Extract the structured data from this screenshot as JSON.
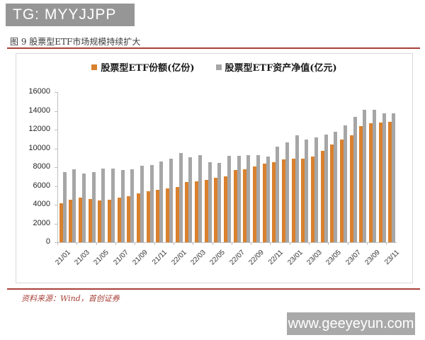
{
  "page": {
    "tg_badge": "TG: MYYJJPP",
    "site_watermark": "www.geeyeyun.com"
  },
  "figure": {
    "title": "图 9 股票型ETF市场规模持续扩大",
    "source": "资料来源：Wind，首创证券"
  },
  "colors": {
    "shares_bar": "#d9812e",
    "nav_bar": "#a6a6a6",
    "accent_red": "#a84038",
    "header_badge_gray": "#969696",
    "footer_badge_gray": "#a9a9a9",
    "axis_line": "#bfbfbf"
  },
  "chart_data": {
    "type": "bar",
    "title": "图 9 股票型ETF市场规模持续扩大",
    "legend_position": "top",
    "grid": false,
    "ylim": [
      0,
      16000
    ],
    "ytick_step": 2000,
    "yticks": [
      0,
      2000,
      4000,
      6000,
      8000,
      10000,
      12000,
      14000,
      16000
    ],
    "xtick_label_rotation": -45,
    "xtick_shown_every": 2,
    "categories": [
      "21/01",
      "21/02",
      "21/03",
      "21/04",
      "21/05",
      "21/06",
      "21/07",
      "21/08",
      "21/09",
      "21/10",
      "21/11",
      "21/12",
      "22/01",
      "22/02",
      "22/03",
      "22/04",
      "22/05",
      "22/06",
      "22/07",
      "22/08",
      "22/09",
      "22/10",
      "22/11",
      "22/12",
      "23/01",
      "23/02",
      "23/03",
      "23/04",
      "23/05",
      "23/06",
      "23/07",
      "23/08",
      "23/09",
      "23/10",
      "23/11"
    ],
    "shown_xtick_labels": [
      "21/01",
      "21/03",
      "21/05",
      "21/07",
      "21/09",
      "21/11",
      "22/01",
      "22/03",
      "22/05",
      "22/07",
      "22/09",
      "22/11",
      "23/01",
      "23/03",
      "23/05",
      "23/07",
      "23/09",
      "23/11"
    ],
    "series": [
      {
        "name": "股票型ETF份额(亿份)",
        "color": "#d9812e",
        "values": [
          4150,
          4550,
          4750,
          4600,
          4450,
          4500,
          4750,
          4900,
          5200,
          5450,
          5550,
          5720,
          5920,
          6400,
          6480,
          6650,
          6900,
          7000,
          7670,
          7750,
          8050,
          8380,
          8560,
          8840,
          8890,
          8940,
          9150,
          9700,
          10420,
          10920,
          11380,
          12400,
          12700,
          12750,
          12830
        ]
      },
      {
        "name": "股票型ETF资产净值(亿元)",
        "color": "#a6a6a6",
        "values": [
          7450,
          7800,
          7350,
          7450,
          7870,
          7830,
          7700,
          7800,
          8180,
          8260,
          8590,
          8940,
          9480,
          9070,
          9270,
          8560,
          8470,
          9220,
          9220,
          9270,
          9320,
          9150,
          10160,
          10620,
          11430,
          10920,
          11180,
          11480,
          11800,
          12450,
          13390,
          14150,
          14100,
          13770,
          13720
        ]
      }
    ]
  }
}
